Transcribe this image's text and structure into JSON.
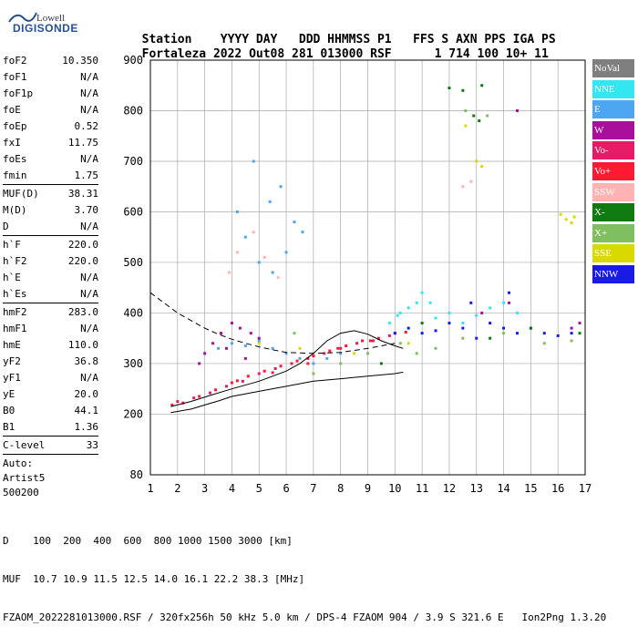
{
  "logo": {
    "line1": "Lowell",
    "line2": "DIGISONDE"
  },
  "header": {
    "labels": [
      "Station",
      "YYYY DAY",
      "DDD HHMMSS P1",
      "FFS S AXN PPS IGA PS"
    ],
    "values": [
      "Fortaleza",
      "2022 Out08",
      "281 013000 RSF",
      "1 714 100 10+ 11"
    ]
  },
  "params": {
    "group1": [
      {
        "name": "foF2",
        "value": "10.350"
      },
      {
        "name": "foF1",
        "value": "N/A"
      },
      {
        "name": "foF1p",
        "value": "N/A"
      },
      {
        "name": "foE",
        "value": "N/A"
      },
      {
        "name": "foEp",
        "value": "0.52"
      },
      {
        "name": "fxI",
        "value": "11.75"
      },
      {
        "name": "foEs",
        "value": "N/A"
      },
      {
        "name": "fmin",
        "value": "1.75"
      }
    ],
    "group2": [
      {
        "name": "MUF(D)",
        "value": "38.31"
      },
      {
        "name": "M(D)",
        "value": "3.70"
      },
      {
        "name": "D",
        "value": "N/A"
      }
    ],
    "group3": [
      {
        "name": "h`F",
        "value": "220.0"
      },
      {
        "name": "h`F2",
        "value": "220.0"
      },
      {
        "name": "h`E",
        "value": "N/A"
      },
      {
        "name": "h`Es",
        "value": "N/A"
      }
    ],
    "group4": [
      {
        "name": "hmF2",
        "value": "283.0"
      },
      {
        "name": "hmF1",
        "value": "N/A"
      },
      {
        "name": "hmE",
        "value": "110.0"
      },
      {
        "name": "yF2",
        "value": "36.8"
      },
      {
        "name": "yF1",
        "value": "N/A"
      },
      {
        "name": "yE",
        "value": "20.0"
      },
      {
        "name": "B0",
        "value": "44.1"
      },
      {
        "name": "B1",
        "value": "1.36"
      }
    ],
    "clevel": {
      "name": "C-level",
      "value": "33"
    }
  },
  "auto": {
    "line1": "Auto:",
    "line2": "Artist5",
    "line3": "500200"
  },
  "legend": [
    {
      "label": "NoVal",
      "color": "#7f7f7f"
    },
    {
      "label": "NNE",
      "color": "#33e6f2"
    },
    {
      "label": "E",
      "color": "#4da6f2"
    },
    {
      "label": "W",
      "color": "#a80f9a"
    },
    {
      "label": "Vo-",
      "color": "#e61a66"
    },
    {
      "label": "Vo+",
      "color": "#ff1a33"
    },
    {
      "label": "SSW",
      "color": "#ffb3b3"
    },
    {
      "label": "X-",
      "color": "#0f7a0f"
    },
    {
      "label": "X+",
      "color": "#80bf60"
    },
    {
      "label": "SSE",
      "color": "#d9d900"
    },
    {
      "label": "NNW",
      "color": "#1a1ae6"
    }
  ],
  "chart_data": {
    "type": "scatter",
    "xlim": [
      1,
      17
    ],
    "ylim": [
      80,
      900
    ],
    "x_ticks": [
      "1",
      "2",
      "3",
      "4",
      "5",
      "6",
      "7",
      "8",
      "9",
      "10",
      "11",
      "12",
      "13",
      "14",
      "15",
      "16",
      "17"
    ],
    "y_ticks": [
      "80",
      "200",
      "300",
      "400",
      "500",
      "600",
      "700",
      "800",
      "900"
    ],
    "grid": true,
    "series": [
      {
        "name": "Vo+",
        "color": "#ff1a33",
        "points": [
          [
            1.8,
            218
          ],
          [
            2.2,
            222
          ],
          [
            2.8,
            235
          ],
          [
            3.4,
            248
          ],
          [
            4,
            262
          ],
          [
            4.6,
            275
          ],
          [
            5.2,
            285
          ],
          [
            5.8,
            295
          ],
          [
            6.4,
            305
          ],
          [
            7,
            315
          ],
          [
            7.6,
            325
          ],
          [
            8.2,
            335
          ],
          [
            8.8,
            345
          ],
          [
            9.4,
            350
          ],
          [
            10,
            360
          ],
          [
            10.4,
            362
          ],
          [
            4.2,
            266
          ],
          [
            5.5,
            282
          ],
          [
            6.8,
            300
          ],
          [
            7.9,
            330
          ],
          [
            9.1,
            345
          ]
        ]
      },
      {
        "name": "E",
        "color": "#4da6f2",
        "points": [
          [
            3.5,
            330
          ],
          [
            4,
            340
          ],
          [
            4.5,
            335
          ],
          [
            5,
            345
          ],
          [
            5.5,
            330
          ],
          [
            6,
            320
          ],
          [
            6.5,
            310
          ],
          [
            7,
            300
          ],
          [
            7.5,
            310
          ],
          [
            8,
            320
          ],
          [
            4.2,
            600
          ],
          [
            4.5,
            550
          ],
          [
            5,
            500
          ],
          [
            5.5,
            480
          ],
          [
            5.8,
            650
          ],
          [
            6,
            520
          ],
          [
            6.3,
            580
          ],
          [
            4.8,
            700
          ],
          [
            5.4,
            620
          ],
          [
            6.6,
            560
          ]
        ]
      },
      {
        "name": "NNE",
        "color": "#33e6f2",
        "points": [
          [
            10.2,
            400
          ],
          [
            10.5,
            410
          ],
          [
            10.8,
            420
          ],
          [
            11,
            440
          ],
          [
            11.3,
            420
          ],
          [
            11.5,
            390
          ],
          [
            12,
            400
          ],
          [
            12.5,
            380
          ],
          [
            13,
            395
          ],
          [
            13.5,
            410
          ],
          [
            14,
            420
          ],
          [
            14.5,
            400
          ],
          [
            9.8,
            380
          ],
          [
            10.1,
            395
          ]
        ]
      },
      {
        "name": "NNW",
        "color": "#1a1ae6",
        "points": [
          [
            10,
            360
          ],
          [
            10.5,
            370
          ],
          [
            11,
            360
          ],
          [
            11.5,
            365
          ],
          [
            12,
            380
          ],
          [
            12.5,
            370
          ],
          [
            13,
            350
          ],
          [
            13.5,
            380
          ],
          [
            14,
            370
          ],
          [
            14.5,
            360
          ],
          [
            15,
            370
          ],
          [
            15.5,
            360
          ],
          [
            16,
            355
          ],
          [
            16.5,
            360
          ],
          [
            12.8,
            420
          ],
          [
            14.2,
            440
          ]
        ]
      },
      {
        "name": "W",
        "color": "#a80f9a",
        "points": [
          [
            3,
            320
          ],
          [
            3.3,
            340
          ],
          [
            3.6,
            360
          ],
          [
            4,
            380
          ],
          [
            4.3,
            370
          ],
          [
            4.7,
            360
          ],
          [
            5,
            350
          ],
          [
            2.8,
            300
          ],
          [
            3.8,
            330
          ],
          [
            4.5,
            310
          ],
          [
            13.2,
            400
          ],
          [
            14.2,
            420
          ],
          [
            16.5,
            370
          ],
          [
            16.8,
            380
          ],
          [
            14.5,
            800
          ]
        ]
      },
      {
        "name": "Vo-",
        "color": "#e61a66",
        "points": [
          [
            2,
            225
          ],
          [
            2.6,
            232
          ],
          [
            3.2,
            242
          ],
          [
            3.8,
            255
          ],
          [
            4.4,
            265
          ],
          [
            5,
            280
          ],
          [
            5.6,
            290
          ],
          [
            6.2,
            300
          ],
          [
            6.8,
            310
          ],
          [
            7.4,
            320
          ],
          [
            8,
            330
          ],
          [
            8.6,
            340
          ],
          [
            9.2,
            345
          ],
          [
            9.8,
            355
          ]
        ]
      },
      {
        "name": "SSW",
        "color": "#ffb3b3",
        "points": [
          [
            12.5,
            650
          ],
          [
            12.8,
            660
          ],
          [
            4.2,
            520
          ],
          [
            4.8,
            560
          ],
          [
            5.2,
            510
          ],
          [
            5.7,
            470
          ],
          [
            3.9,
            480
          ]
        ]
      },
      {
        "name": "X-",
        "color": "#0f7a0f",
        "points": [
          [
            12.9,
            790
          ],
          [
            13.1,
            780
          ],
          [
            12.5,
            840
          ],
          [
            12,
            845
          ],
          [
            13.2,
            850
          ],
          [
            9.5,
            300
          ],
          [
            11,
            380
          ],
          [
            13.5,
            350
          ],
          [
            15,
            370
          ],
          [
            16.8,
            360
          ]
        ]
      },
      {
        "name": "X+",
        "color": "#80bf60",
        "points": [
          [
            7,
            280
          ],
          [
            8,
            300
          ],
          [
            9,
            320
          ],
          [
            10.2,
            340
          ],
          [
            10.8,
            320
          ],
          [
            11.5,
            330
          ],
          [
            12.5,
            350
          ],
          [
            14,
            360
          ],
          [
            15.5,
            340
          ],
          [
            16.5,
            345
          ],
          [
            12.6,
            800
          ],
          [
            13.4,
            790
          ],
          [
            6.3,
            360
          ]
        ]
      },
      {
        "name": "SSE",
        "color": "#d9d900",
        "points": [
          [
            16.1,
            595
          ],
          [
            16.3,
            585
          ],
          [
            16.5,
            578
          ],
          [
            16.6,
            590
          ],
          [
            13,
            700
          ],
          [
            13.2,
            690
          ],
          [
            12.6,
            770
          ],
          [
            5,
            340
          ],
          [
            6.5,
            330
          ],
          [
            8.5,
            320
          ],
          [
            10.5,
            340
          ]
        ]
      }
    ],
    "curves": [
      {
        "name": "virtual-height-trace",
        "style": "solid",
        "points": [
          [
            1.75,
            203
          ],
          [
            2.5,
            210
          ],
          [
            3,
            218
          ],
          [
            3.5,
            226
          ],
          [
            4,
            235
          ],
          [
            5,
            245
          ],
          [
            6,
            255
          ],
          [
            7,
            265
          ],
          [
            8,
            270
          ],
          [
            9,
            275
          ],
          [
            10,
            280
          ],
          [
            10.3,
            283
          ]
        ]
      },
      {
        "name": "profile-upper-trace",
        "style": "solid",
        "points": [
          [
            1.75,
            215
          ],
          [
            2.5,
            225
          ],
          [
            3.2,
            237
          ],
          [
            4,
            250
          ],
          [
            5,
            265
          ],
          [
            6,
            285
          ],
          [
            6.5,
            300
          ],
          [
            7,
            320
          ],
          [
            7.5,
            345
          ],
          [
            8,
            360
          ],
          [
            8.5,
            365
          ],
          [
            9,
            358
          ],
          [
            9.5,
            345
          ],
          [
            10,
            335
          ],
          [
            10.3,
            330
          ]
        ]
      },
      {
        "name": "profile-dashed-trace",
        "style": "dashed",
        "points": [
          [
            1,
            440
          ],
          [
            1.5,
            420
          ],
          [
            2,
            400
          ],
          [
            2.5,
            385
          ],
          [
            3,
            370
          ],
          [
            3.5,
            358
          ],
          [
            4,
            348
          ],
          [
            4.5,
            340
          ],
          [
            5,
            333
          ],
          [
            5.5,
            327
          ],
          [
            6,
            322
          ],
          [
            7,
            320
          ],
          [
            8,
            322
          ],
          [
            9,
            330
          ],
          [
            10,
            340
          ]
        ]
      }
    ]
  },
  "footer": {
    "d_row": "D    100  200  400  600  800 1000 1500 3000 [km]",
    "muf_row": "MUF  10.7 10.9 11.5 12.5 14.0 16.1 22.2 38.3 [MHz]",
    "file_row": "FZAOM_2022281013000.RSF / 320fx256h 50 kHz 5.0 km / DPS-4 FZAOM 904 / 3.9 S 321.6 E   Ion2Png 1.3.20"
  }
}
